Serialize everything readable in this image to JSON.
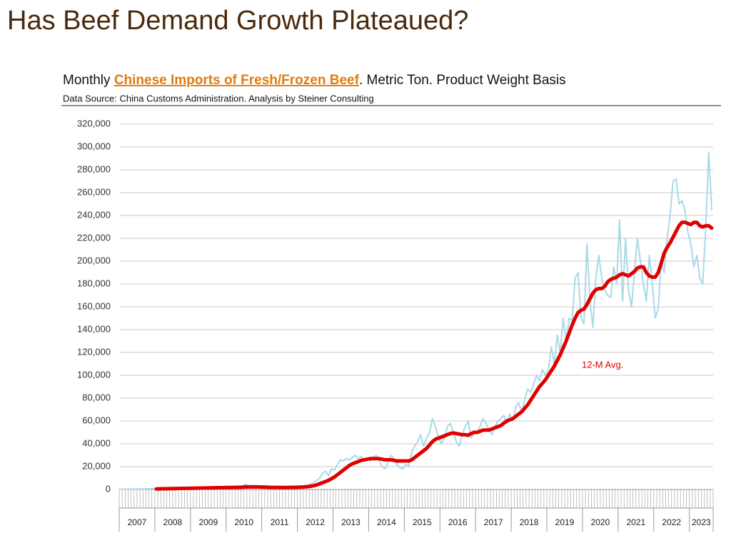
{
  "chart_data": {
    "type": "line",
    "title": "Has Beef Demand Growth Plateaued?",
    "subtitle": [
      "Monthly ",
      "Chinese Imports of Fresh/Frozen Beef",
      ".  Metric Ton.  Product Weight Basis"
    ],
    "source": "Data Source:  China Customs Administration.  Analysis by Steiner Consulting",
    "annotation": "12-M Avg.",
    "categories": [
      "2007",
      null,
      null,
      null,
      null,
      null,
      null,
      null,
      null,
      null,
      null,
      null,
      "2008",
      null,
      null,
      null,
      null,
      null,
      null,
      null,
      null,
      null,
      null,
      null,
      "2009",
      null,
      null,
      null,
      null,
      null,
      null,
      null,
      null,
      null,
      null,
      null,
      "2010",
      null,
      null,
      null,
      null,
      null,
      null,
      null,
      null,
      null,
      null,
      null,
      "2011",
      null,
      null,
      null,
      null,
      null,
      null,
      null,
      null,
      null,
      null,
      null,
      "2012",
      null,
      null,
      null,
      null,
      null,
      null,
      null,
      null,
      null,
      null,
      null,
      "2013",
      null,
      null,
      null,
      null,
      null,
      null,
      null,
      null,
      null,
      null,
      null,
      "2014",
      null,
      null,
      null,
      null,
      null,
      null,
      null,
      null,
      null,
      null,
      null,
      "2015",
      null,
      null,
      null,
      null,
      null,
      null,
      null,
      null,
      null,
      null,
      null,
      "2016",
      null,
      null,
      null,
      null,
      null,
      null,
      null,
      null,
      null,
      null,
      null,
      "2017",
      null,
      null,
      null,
      null,
      null,
      null,
      null,
      null,
      null,
      null,
      null,
      "2018",
      null,
      null,
      null,
      null,
      null,
      null,
      null,
      null,
      null,
      null,
      null,
      "2019",
      null,
      null,
      null,
      null,
      null,
      null,
      null,
      null,
      null,
      null,
      null,
      "2020",
      null,
      null,
      null,
      null,
      null,
      null,
      null,
      null,
      null,
      null,
      null,
      "2021",
      null,
      null,
      null,
      null,
      null,
      null,
      null,
      null,
      null,
      null,
      null,
      "2022",
      null,
      null,
      null,
      null,
      null,
      null,
      null,
      null,
      null,
      null,
      null,
      "2023",
      null,
      null,
      null,
      null,
      null,
      null,
      null
    ],
    "series": [
      {
        "color": "#a9d9e8",
        "values": [
          300,
          300,
          300,
          400,
          400,
          400,
          500,
          500,
          500,
          600,
          600,
          700,
          800,
          800,
          900,
          900,
          1000,
          1000,
          1000,
          1100,
          1100,
          1200,
          1200,
          1300,
          1000,
          1200,
          1300,
          1400,
          1400,
          1500,
          1500,
          1600,
          1600,
          1700,
          1800,
          1800,
          1500,
          1800,
          2000,
          2200,
          2500,
          3000,
          4500,
          3500,
          2000,
          1800,
          1600,
          1500,
          1500,
          1600,
          1700,
          1800,
          1800,
          1900,
          2000,
          2000,
          2100,
          2100,
          2200,
          2300,
          2000,
          2500,
          3000,
          3500,
          5000,
          6000,
          8000,
          10000,
          14000,
          16000,
          12000,
          18000,
          17000,
          22000,
          26000,
          25000,
          27000,
          26000,
          28000,
          30000,
          27000,
          29000,
          25000,
          27000,
          25000,
          28000,
          30000,
          26000,
          20000,
          18000,
          23000,
          30000,
          27000,
          22000,
          19000,
          18000,
          22000,
          20000,
          33000,
          38000,
          42000,
          48000,
          38000,
          45000,
          50000,
          62000,
          55000,
          45000,
          40000,
          45000,
          55000,
          58000,
          50000,
          42000,
          38000,
          48000,
          55000,
          60000,
          45000,
          50000,
          50000,
          55000,
          62000,
          58000,
          52000,
          48000,
          55000,
          60000,
          62000,
          65000,
          58000,
          66000,
          60000,
          72000,
          76000,
          68000,
          78000,
          88000,
          85000,
          92000,
          100000,
          95000,
          105000,
          100000,
          105000,
          125000,
          110000,
          135000,
          120000,
          150000,
          130000,
          150000,
          148000,
          185000,
          190000,
          150000,
          145000,
          215000,
          165000,
          142000,
          185000,
          205000,
          185000,
          175000,
          170000,
          168000,
          195000,
          180000,
          236000,
          165000,
          220000,
          175000,
          160000,
          190000,
          220000,
          200000,
          180000,
          165000,
          205000,
          180000,
          150000,
          158000,
          200000,
          190000,
          220000,
          240000,
          270000,
          272000,
          250000,
          253000,
          245000,
          225000,
          215000,
          195000,
          205000,
          185000,
          180000,
          230000,
          295000,
          245000
        ]
      },
      {
        "color": "#e00000",
        "values": [
          null,
          null,
          null,
          null,
          null,
          null,
          null,
          null,
          null,
          null,
          null,
          null,
          500,
          550,
          600,
          650,
          700,
          750,
          800,
          850,
          900,
          950,
          1000,
          1050,
          1100,
          1150,
          1200,
          1250,
          1300,
          1350,
          1400,
          1450,
          1500,
          1550,
          1600,
          1650,
          1700,
          1750,
          1800,
          1850,
          1900,
          2000,
          2200,
          2300,
          2300,
          2300,
          2300,
          2200,
          2100,
          2000,
          1900,
          1800,
          1800,
          1800,
          1700,
          1700,
          1800,
          1800,
          1900,
          1900,
          2000,
          2100,
          2300,
          2500,
          2800,
          3300,
          4000,
          5000,
          6000,
          7000,
          8000,
          9500,
          11000,
          13000,
          15000,
          17000,
          19000,
          21000,
          22500,
          23500,
          24500,
          25500,
          26000,
          26500,
          27000,
          27000,
          27000,
          27000,
          26500,
          26000,
          26000,
          26000,
          25500,
          25000,
          25000,
          25000,
          25000,
          25000,
          26000,
          28000,
          30000,
          32000,
          34000,
          36000,
          39000,
          42000,
          44000,
          45000,
          46000,
          47000,
          48000,
          49000,
          49500,
          49000,
          48500,
          48000,
          48000,
          47500,
          49000,
          50000,
          50000,
          51000,
          52000,
          52000,
          52000,
          53000,
          54000,
          55000,
          56000,
          58000,
          60000,
          61000,
          62000,
          64000,
          66000,
          68000,
          71000,
          74000,
          78000,
          82000,
          86000,
          90000,
          93000,
          96000,
          100000,
          104000,
          108000,
          113000,
          118000,
          124000,
          130000,
          137000,
          144000,
          150000,
          155000,
          157000,
          158000,
          162000,
          167000,
          172000,
          175000,
          176000,
          176000,
          178000,
          182000,
          184000,
          185000,
          186000,
          188000,
          189000,
          188000,
          187000,
          189000,
          191000,
          194000,
          195000,
          195000,
          190000,
          187000,
          186000,
          186000,
          190000,
          198000,
          207000,
          212000,
          216000,
          221000,
          226000,
          231000,
          234000,
          234000,
          233000,
          232000,
          234000,
          234000,
          231000,
          230000,
          231000,
          231000,
          229000
        ]
      }
    ],
    "ylim": [
      0,
      320000
    ],
    "yticks": [
      0,
      {
        "value": 20000,
        "label": "20,000"
      },
      {
        "value": 40000,
        "label": "40,000"
      },
      {
        "value": 60000,
        "label": "60,000"
      },
      {
        "value": 80000,
        "label": "80,000"
      },
      {
        "value": 100000,
        "label": "100,000"
      },
      {
        "value": 120000,
        "label": "120,000"
      },
      {
        "value": 140000,
        "label": "140,000"
      },
      {
        "value": 160000,
        "label": "160,000"
      },
      {
        "value": 180000,
        "label": "180,000"
      },
      {
        "value": 200000,
        "label": "200,000"
      },
      {
        "value": 220000,
        "label": "220,000"
      },
      {
        "value": 240000,
        "label": "240,000"
      },
      {
        "value": 260000,
        "label": "260,000"
      },
      {
        "value": 280000,
        "label": "280,000"
      },
      {
        "value": 300000,
        "label": "300,000"
      },
      {
        "value": 320000,
        "label": "320,000"
      }
    ],
    "grid": true
  }
}
